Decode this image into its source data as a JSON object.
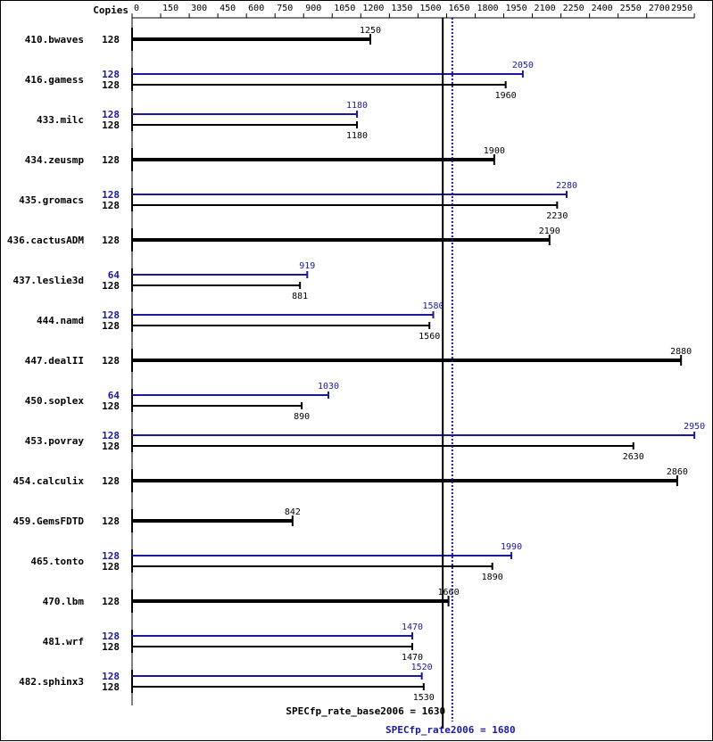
{
  "chart_data": {
    "type": "bar",
    "orientation": "horizontal",
    "copies_header": "Copies",
    "x_ticks": [
      0,
      150,
      300,
      450,
      600,
      750,
      900,
      1050,
      1200,
      1350,
      1500,
      1650,
      1800,
      1950,
      2100,
      2250,
      2400,
      2550,
      2700,
      2950
    ],
    "xlim": [
      0,
      2950
    ],
    "colors": {
      "base": "#000000",
      "peak": "#191999"
    },
    "benchmarks": [
      {
        "name": "410.bwaves",
        "base_copies": "128",
        "base": 1250,
        "base_label": "1250"
      },
      {
        "name": "416.gamess",
        "peak_copies": "128",
        "peak": 2050,
        "peak_label": "2050",
        "base_copies": "128",
        "base": 1960,
        "base_label": "1960"
      },
      {
        "name": "433.milc",
        "peak_copies": "128",
        "peak": 1180,
        "peak_label": "1180",
        "base_copies": "128",
        "base": 1180,
        "base_label": "1180"
      },
      {
        "name": "434.zeusmp",
        "base_copies": "128",
        "base": 1900,
        "base_label": "1900"
      },
      {
        "name": "435.gromacs",
        "peak_copies": "128",
        "peak": 2280,
        "peak_label": "2280",
        "base_copies": "128",
        "base": 2230,
        "base_label": "2230"
      },
      {
        "name": "436.cactusADM",
        "base_copies": "128",
        "base": 2190,
        "base_label": "2190"
      },
      {
        "name": "437.leslie3d",
        "peak_copies": "64",
        "peak": 919,
        "peak_label": "919",
        "base_copies": "128",
        "base": 881,
        "base_label": "881"
      },
      {
        "name": "444.namd",
        "peak_copies": "128",
        "peak": 1580,
        "peak_label": "1580",
        "base_copies": "128",
        "base": 1560,
        "base_label": "1560"
      },
      {
        "name": "447.dealII",
        "base_copies": "128",
        "base": 2880,
        "base_label": "2880"
      },
      {
        "name": "450.soplex",
        "peak_copies": "64",
        "peak": 1030,
        "peak_label": "1030",
        "base_copies": "128",
        "base": 890,
        "base_label": "890"
      },
      {
        "name": "453.povray",
        "peak_copies": "128",
        "peak": 2950,
        "peak_label": "2950",
        "base_copies": "128",
        "base": 2630,
        "base_label": "2630"
      },
      {
        "name": "454.calculix",
        "base_copies": "128",
        "base": 2860,
        "base_label": "2860"
      },
      {
        "name": "459.GemsFDTD",
        "base_copies": "128",
        "base": 842,
        "base_label": "842"
      },
      {
        "name": "465.tonto",
        "peak_copies": "128",
        "peak": 1990,
        "peak_label": "1990",
        "base_copies": "128",
        "base": 1890,
        "base_label": "1890"
      },
      {
        "name": "470.lbm",
        "base_copies": "128",
        "base": 1660,
        "base_label": "1660"
      },
      {
        "name": "481.wrf",
        "peak_copies": "128",
        "peak": 1470,
        "peak_label": "1470",
        "base_copies": "128",
        "base": 1470,
        "base_label": "1470"
      },
      {
        "name": "482.sphinx3",
        "peak_copies": "128",
        "peak": 1520,
        "peak_label": "1520",
        "base_copies": "128",
        "base": 1530,
        "base_label": "1530"
      }
    ],
    "base_summary": {
      "label": "SPECfp_rate_base2006 = 1630",
      "value": 1630
    },
    "peak_summary": {
      "label": "SPECfp_rate2006 = 1680",
      "value": 1680
    }
  }
}
